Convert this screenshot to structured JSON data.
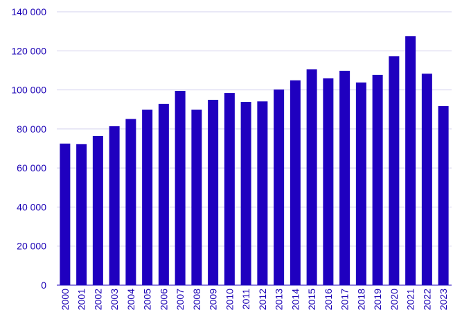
{
  "chart_data": {
    "type": "bar",
    "title": "",
    "xlabel": "",
    "ylabel": "",
    "categories": [
      "2000",
      "2001",
      "2002",
      "2003",
      "2004",
      "2005",
      "2006",
      "2007",
      "2008",
      "2009",
      "2010",
      "2011",
      "2012",
      "2013",
      "2014",
      "2015",
      "2016",
      "2017",
      "2018",
      "2019",
      "2020",
      "2021",
      "2022",
      "2023"
    ],
    "values": [
      72500,
      72200,
      76400,
      81400,
      85100,
      89900,
      92800,
      99500,
      89900,
      94900,
      98400,
      93800,
      94100,
      100200,
      104900,
      110500,
      105900,
      109800,
      103800,
      107700,
      117200,
      127500,
      108300,
      91700
    ],
    "ylim": [
      0,
      140000
    ],
    "yticks": [
      0,
      20000,
      40000,
      60000,
      80000,
      100000,
      120000,
      140000
    ],
    "ytick_labels": [
      "0",
      "20 000",
      "40 000",
      "60 000",
      "80 000",
      "100 000",
      "120 000",
      "140 000"
    ],
    "grid": true,
    "legend": "none",
    "colors": {
      "bar": "#1f00bf",
      "axis_text": "#1a00b5",
      "grid": "#d3d0ee",
      "axis": "#1f00bf"
    }
  }
}
